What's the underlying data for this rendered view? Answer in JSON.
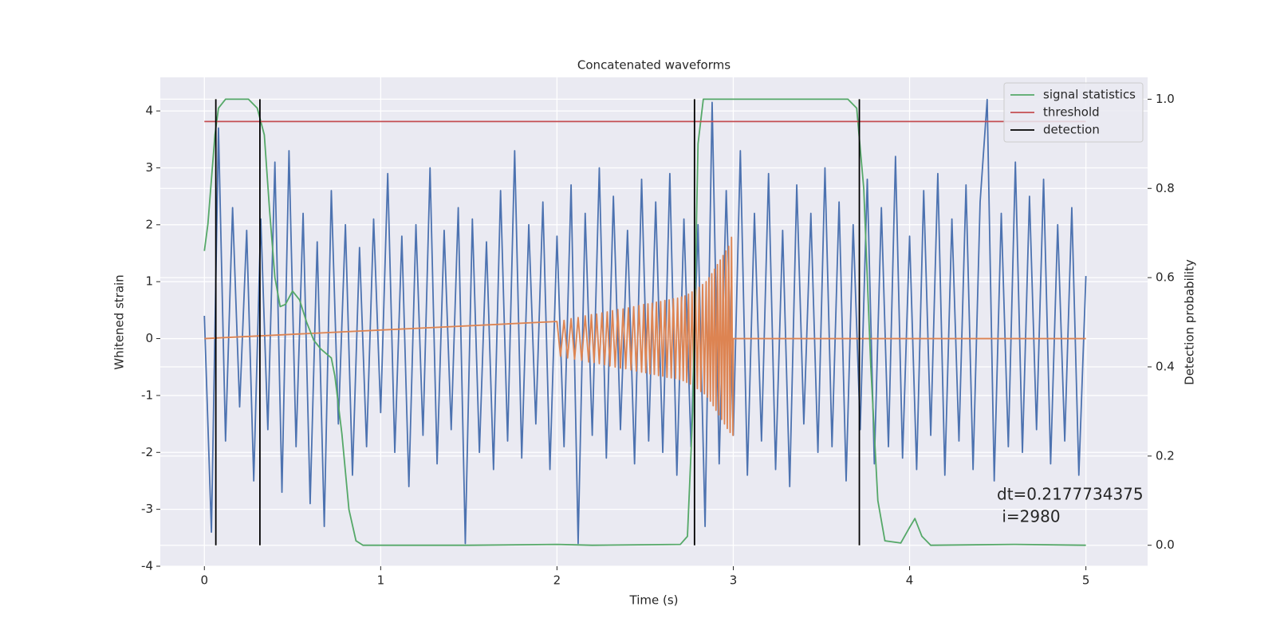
{
  "chart_data": {
    "type": "line",
    "title": "Concatenated waveforms",
    "xlabel": "Time (s)",
    "ylabel": "Whitened strain",
    "y2label": "Detection probability",
    "xlim": [
      -0.25,
      5.35
    ],
    "ylim": [
      -4.0,
      4.59
    ],
    "y2lim": [
      -0.047,
      1.049
    ],
    "xticks": [
      0,
      1,
      2,
      3,
      4,
      5
    ],
    "yticks": [
      -4,
      -3,
      -2,
      -1,
      0,
      1,
      2,
      3,
      4
    ],
    "y2ticks": [
      {
        "value": 0,
        "label": "0.0"
      },
      0.2,
      0.4,
      0.6,
      0.8,
      {
        "value": 1,
        "label": "1.0"
      }
    ],
    "grid": true,
    "legend": "upper right",
    "annotation": [
      "dt=0.2177734375",
      " i=2980"
    ],
    "series": [
      {
        "name": null,
        "color": "#4c72b0",
        "x": [
          0,
          0.04,
          0.08,
          0.12,
          0.16,
          0.2,
          0.24,
          0.28,
          0.32,
          0.36,
          0.4,
          0.44,
          0.48,
          0.52,
          0.56,
          0.6,
          0.64,
          0.68,
          0.72,
          0.76,
          0.8,
          0.84,
          0.88,
          0.92,
          0.96,
          1,
          1.04,
          1.08,
          1.12,
          1.16,
          1.2,
          1.24,
          1.28,
          1.32,
          1.36,
          1.4,
          1.44,
          1.48,
          1.52,
          1.56,
          1.6,
          1.64,
          1.68,
          1.72,
          1.76,
          1.8,
          1.84,
          1.88,
          1.92,
          1.96,
          2,
          2.04,
          2.08,
          2.12,
          2.16,
          2.2,
          2.24,
          2.28,
          2.32,
          2.36,
          2.4,
          2.44,
          2.48,
          2.52,
          2.56,
          2.6,
          2.64,
          2.68,
          2.72,
          2.76,
          2.8,
          2.84,
          2.88,
          2.92,
          2.96,
          3,
          3.04,
          3.08,
          3.12,
          3.16,
          3.2,
          3.24,
          3.28,
          3.32,
          3.36,
          3.4,
          3.44,
          3.48,
          3.52,
          3.56,
          3.6,
          3.64,
          3.68,
          3.72,
          3.76,
          3.8,
          3.84,
          3.88,
          3.92,
          3.96,
          4,
          4.04,
          4.08,
          4.12,
          4.16,
          4.2,
          4.24,
          4.28,
          4.32,
          4.36,
          4.4,
          4.44,
          4.48,
          4.52,
          4.56,
          4.6,
          4.64,
          4.68,
          4.72,
          4.76,
          4.8,
          4.84,
          4.88,
          4.92,
          4.96,
          5
        ],
        "values": [
          0.4,
          -3.4,
          3.7,
          -1.8,
          2.3,
          -1.2,
          1.9,
          -2.5,
          2.1,
          -1.6,
          3.1,
          -2.7,
          3.3,
          -1.9,
          2.2,
          -2.9,
          1.7,
          -3.3,
          2.6,
          -1.5,
          2.0,
          -2.4,
          1.6,
          -1.9,
          2.1,
          -1.3,
          2.9,
          -2.0,
          1.8,
          -2.6,
          2.0,
          -1.7,
          3.0,
          -2.2,
          1.9,
          -1.6,
          2.3,
          -3.6,
          2.1,
          -2.0,
          1.7,
          -2.3,
          2.6,
          -1.8,
          3.3,
          -2.1,
          2.0,
          -1.5,
          2.4,
          -2.3,
          1.8,
          -1.9,
          2.7,
          -3.6,
          2.2,
          -1.7,
          3.0,
          -2.1,
          2.5,
          -1.6,
          1.9,
          -2.2,
          2.8,
          -1.8,
          2.4,
          -2.0,
          2.9,
          -2.4,
          2.1,
          -1.9,
          2.0,
          -3.3,
          4.15,
          -2.2,
          2.6,
          -1.7,
          3.3,
          -2.4,
          2.2,
          -1.8,
          2.9,
          -2.3,
          1.9,
          -2.6,
          2.7,
          -1.5,
          2.2,
          -2.0,
          3.0,
          -1.9,
          2.4,
          -2.5,
          2.0,
          -1.6,
          2.8,
          -2.2,
          2.3,
          -1.9,
          3.2,
          -2.1,
          1.8,
          -2.3,
          2.6,
          -1.7,
          2.9,
          -2.4,
          2.1,
          -1.8,
          2.7,
          -2.3,
          2.4,
          4.2,
          -2.5,
          2.2,
          -1.9,
          3.1,
          -2.0,
          2.5,
          -1.6,
          2.8,
          -2.2,
          2.0,
          -1.8,
          2.3,
          -2.4,
          1.1
        ]
      },
      {
        "name": null,
        "color": "#dd8452",
        "x": [
          0,
          2.0,
          2.02,
          2.04,
          2.06,
          2.08,
          2.1,
          2.12,
          2.14,
          2.16,
          2.18,
          2.195,
          2.21,
          2.225,
          2.24,
          2.255,
          2.27,
          2.285,
          2.3,
          2.315,
          2.33,
          2.345,
          2.36,
          2.375,
          2.39,
          2.405,
          2.42,
          2.435,
          2.45,
          2.465,
          2.48,
          2.492,
          2.504,
          2.516,
          2.528,
          2.54,
          2.552,
          2.564,
          2.576,
          2.588,
          2.6,
          2.612,
          2.624,
          2.636,
          2.648,
          2.66,
          2.672,
          2.684,
          2.696,
          2.706,
          2.716,
          2.726,
          2.736,
          2.746,
          2.756,
          2.766,
          2.776,
          2.786,
          2.796,
          2.806,
          2.816,
          2.826,
          2.836,
          2.846,
          2.854,
          2.862,
          2.87,
          2.878,
          2.886,
          2.894,
          2.902,
          2.91,
          2.918,
          2.926,
          2.934,
          2.942,
          2.95,
          2.958,
          2.966,
          2.974,
          2.982,
          2.99,
          2.998,
          3.0,
          5.0
        ],
        "values": [
          0,
          0.3,
          -0.31,
          0.32,
          -0.34,
          0.35,
          -0.36,
          0.37,
          -0.38,
          0.4,
          -0.41,
          0.42,
          -0.42,
          0.43,
          -0.44,
          0.45,
          -0.46,
          0.47,
          -0.48,
          0.49,
          -0.5,
          0.51,
          -0.52,
          0.52,
          -0.53,
          0.54,
          -0.55,
          0.56,
          -0.57,
          0.58,
          -0.59,
          0.6,
          -0.6,
          0.61,
          -0.62,
          0.62,
          -0.63,
          0.64,
          -0.65,
          0.65,
          -0.66,
          0.67,
          -0.68,
          0.68,
          -0.69,
          0.7,
          -0.7,
          0.71,
          -0.72,
          0.73,
          -0.74,
          0.75,
          -0.77,
          0.78,
          -0.8,
          0.82,
          -0.84,
          0.86,
          -0.88,
          0.9,
          -0.93,
          0.95,
          -0.97,
          1.0,
          -1.03,
          1.07,
          -1.1,
          1.14,
          -1.18,
          1.22,
          -1.26,
          1.3,
          -1.34,
          1.38,
          -1.42,
          1.46,
          -1.5,
          1.54,
          -1.58,
          1.62,
          -1.65,
          1.78,
          -1.7,
          0,
          0
        ]
      },
      {
        "name": "signal statistics",
        "color": "#55a868",
        "axis": "y2",
        "x": [
          0,
          0.02,
          0.04,
          0.06,
          0.08,
          0.12,
          0.25,
          0.3,
          0.34,
          0.37,
          0.4,
          0.43,
          0.46,
          0.5,
          0.54,
          0.58,
          0.62,
          0.66,
          0.72,
          0.74,
          0.78,
          0.82,
          0.86,
          0.9,
          1.5,
          2.0,
          2.2,
          2.7,
          2.74,
          2.77,
          2.8,
          2.83,
          3.65,
          3.7,
          3.74,
          3.78,
          3.82,
          3.86,
          3.95,
          4.0,
          4.03,
          4.07,
          4.12,
          4.6,
          5.0
        ],
        "values": [
          0.66,
          0.72,
          0.82,
          0.92,
          0.98,
          1.0,
          1.0,
          0.98,
          0.92,
          0.75,
          0.6,
          0.535,
          0.54,
          0.57,
          0.55,
          0.5,
          0.46,
          0.44,
          0.42,
          0.38,
          0.25,
          0.08,
          0.01,
          0.0,
          0.0,
          0.002,
          0.0,
          0.002,
          0.02,
          0.3,
          0.9,
          1.0,
          1.0,
          0.98,
          0.8,
          0.4,
          0.1,
          0.01,
          0.005,
          0.04,
          0.06,
          0.02,
          0.0,
          0.002,
          0.0
        ]
      },
      {
        "name": "threshold",
        "color": "#c44e52",
        "axis": "y2",
        "x": [
          0,
          5
        ],
        "values": [
          0.95,
          0.95
        ]
      },
      {
        "name": "detection",
        "color": "#000000",
        "axis": "y2",
        "type": "vlines",
        "x": [
          0.065,
          0.315,
          2.78,
          3.715
        ],
        "y_range": [
          0,
          1
        ]
      }
    ]
  }
}
